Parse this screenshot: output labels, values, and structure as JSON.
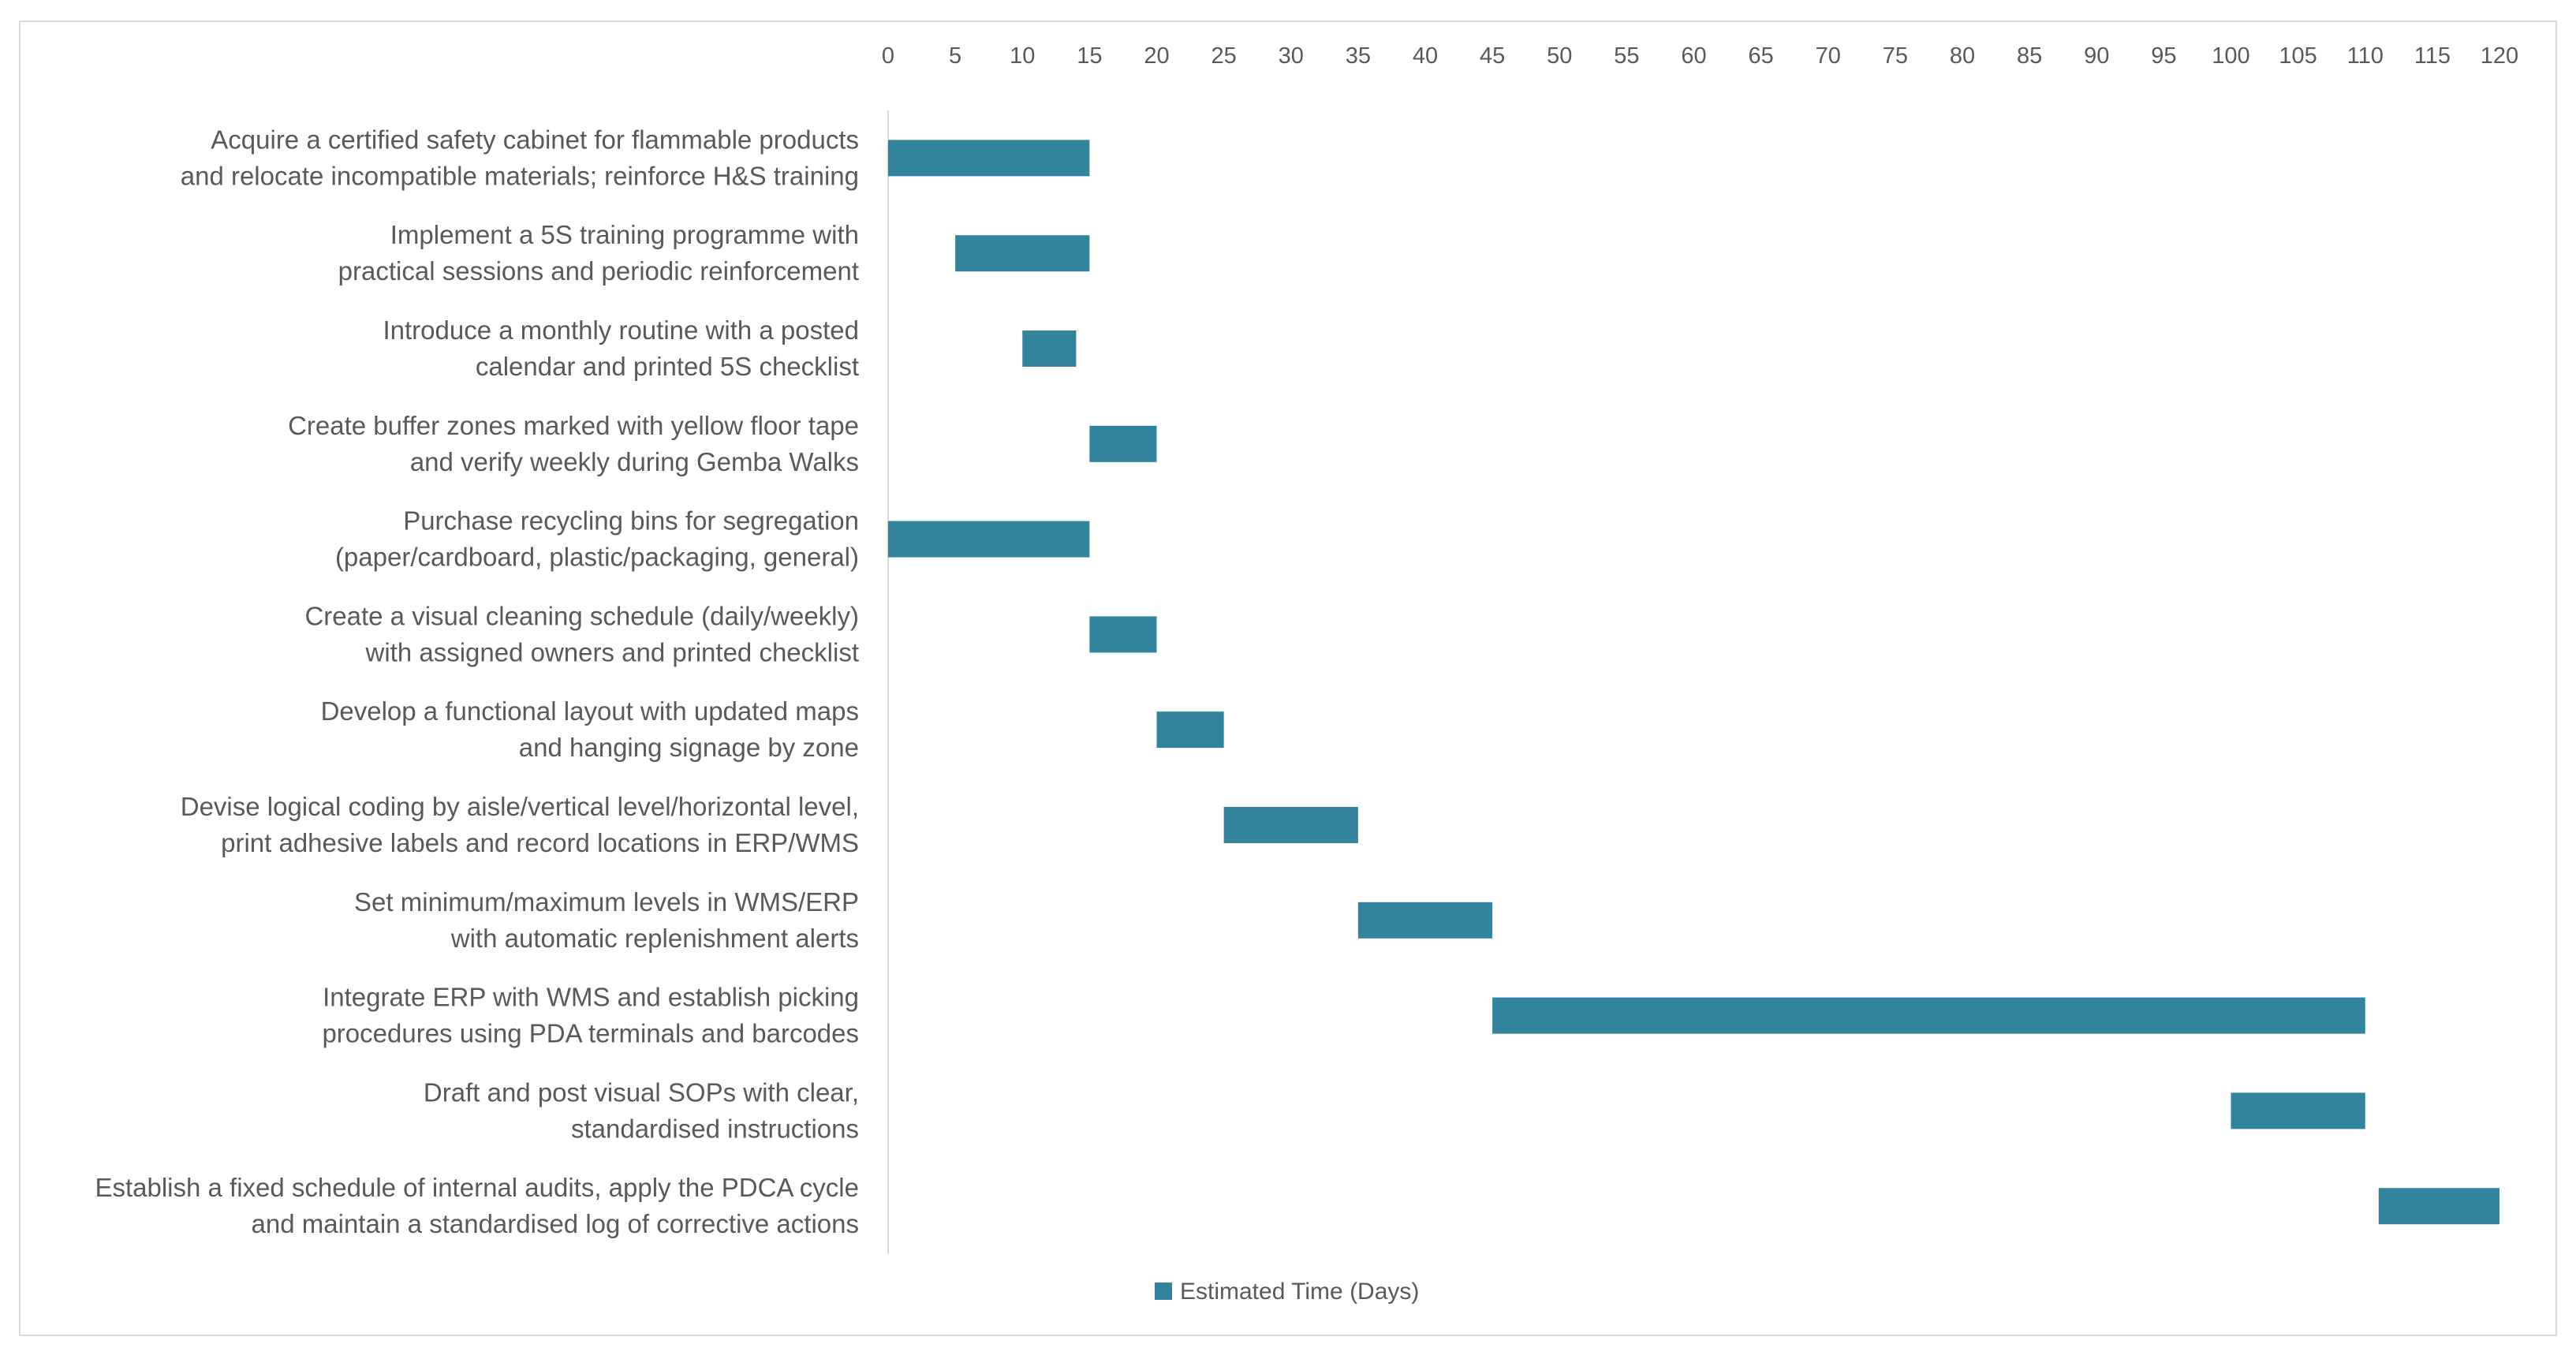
{
  "chart_data": {
    "type": "gantt-bar",
    "title": "",
    "xlabel": "",
    "ylabel": "",
    "xlim": [
      0,
      120
    ],
    "x_ticks": [
      0,
      5,
      10,
      15,
      20,
      25,
      30,
      35,
      40,
      45,
      50,
      55,
      60,
      65,
      70,
      75,
      80,
      85,
      90,
      95,
      100,
      105,
      110,
      115,
      120
    ],
    "grid": false,
    "legend": {
      "placement": "bottom",
      "entries": [
        "Estimated Time (Days)"
      ]
    },
    "series": [
      {
        "name": "Estimated Time (Days)",
        "color": "#31849b"
      }
    ],
    "tasks": [
      {
        "label_lines": [
          "Acquire a certified safety cabinet for flammable products",
          "and relocate incompatible materials; reinforce H&S training"
        ],
        "start": 0,
        "duration": 15
      },
      {
        "label_lines": [
          "Implement a 5S training programme with",
          "practical sessions and periodic reinforcement"
        ],
        "start": 5,
        "duration": 10
      },
      {
        "label_lines": [
          "Introduce a monthly routine with a posted",
          "calendar and printed 5S checklist"
        ],
        "start": 10,
        "duration": 4
      },
      {
        "label_lines": [
          "Create buffer zones marked with yellow floor tape",
          "and verify weekly during Gemba Walks"
        ],
        "start": 15,
        "duration": 5
      },
      {
        "label_lines": [
          "Purchase recycling bins for segregation",
          "(paper/cardboard, plastic/packaging, general)"
        ],
        "start": 0,
        "duration": 15
      },
      {
        "label_lines": [
          "Create a visual cleaning schedule (daily/weekly)",
          "with assigned owners and printed checklist"
        ],
        "start": 15,
        "duration": 5
      },
      {
        "label_lines": [
          "Develop a functional layout with updated maps",
          "and hanging signage by zone"
        ],
        "start": 20,
        "duration": 5
      },
      {
        "label_lines": [
          "Devise logical coding by aisle/vertical level/horizontal level,",
          "print adhesive labels and record locations in ERP/WMS"
        ],
        "start": 25,
        "duration": 10
      },
      {
        "label_lines": [
          "Set minimum/maximum levels in WMS/ERP",
          "with automatic replenishment alerts"
        ],
        "start": 35,
        "duration": 10
      },
      {
        "label_lines": [
          "Integrate ERP with WMS and establish picking",
          "procedures using PDA terminals and barcodes"
        ],
        "start": 45,
        "duration": 65
      },
      {
        "label_lines": [
          "Draft and post visual SOPs with clear,",
          "standardised instructions"
        ],
        "start": 100,
        "duration": 10
      },
      {
        "label_lines": [
          "Establish a fixed schedule of internal audits, apply the PDCA cycle",
          "and maintain a standardised log of corrective actions"
        ],
        "start": 111,
        "duration": 9
      }
    ]
  }
}
